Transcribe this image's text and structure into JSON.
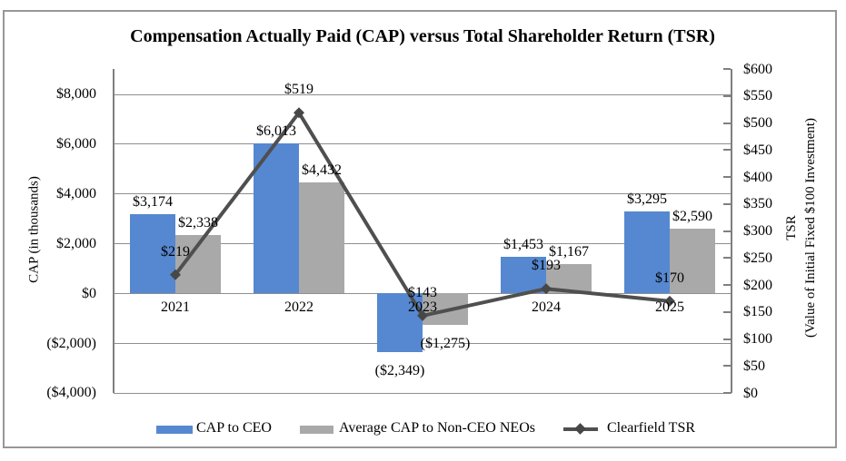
{
  "title": "Compensation Actually Paid (CAP) versus Total Shareholder Return (TSR)",
  "left_axis": {
    "title": "CAP (in thousands)",
    "tick_labels": [
      "$8,000",
      "$6,000",
      "$4,000",
      "$2,000",
      "$0",
      "($2,000)",
      "($4,000)"
    ],
    "tick_values": [
      8000,
      6000,
      4000,
      2000,
      0,
      -2000,
      -4000
    ],
    "ylim": [
      -4000,
      8000
    ]
  },
  "right_axis": {
    "title_line1": "TSR",
    "title_line2": "(Value of Initial Fixed $100 Investment)",
    "tick_labels": [
      "$600",
      "$550",
      "$500",
      "$450",
      "$400",
      "$350",
      "$300",
      "$250",
      "$200",
      "$150",
      "$100",
      "$50",
      "$0"
    ],
    "tick_values": [
      600,
      550,
      500,
      450,
      400,
      350,
      300,
      250,
      200,
      150,
      100,
      50,
      0
    ],
    "ylim": [
      0,
      600
    ]
  },
  "chart_data": {
    "type": "bar",
    "subtype": "bar+line combo, dual axis",
    "categories": [
      "2021",
      "2022",
      "2023",
      "2024",
      "2025"
    ],
    "series": [
      {
        "name": "CAP to CEO",
        "type": "bar",
        "axis": "left",
        "color": "#5588d0",
        "values": [
          3174,
          6013,
          -2349,
          1453,
          3295
        ],
        "labels": [
          "$3,174",
          "$6,013",
          "($2,349)",
          "$1,453",
          "$3,295"
        ]
      },
      {
        "name": "Average CAP to Non-CEO NEOs",
        "type": "bar",
        "axis": "left",
        "color": "#a9a9a9",
        "values": [
          2338,
          4432,
          -1275,
          1167,
          2590
        ],
        "labels": [
          "$2,338",
          "$4,432",
          "($1,275)",
          "$1,167",
          "$2,590"
        ]
      },
      {
        "name": "Clearfield TSR",
        "type": "line",
        "axis": "right",
        "color": "#4f4f4f",
        "marker": "diamond",
        "values": [
          219,
          519,
          143,
          193,
          170
        ],
        "labels": [
          "$219",
          "$519",
          "$143",
          "$193",
          "$170"
        ]
      }
    ],
    "grid": true,
    "legend_position": "bottom",
    "colors": {
      "gridline": "#8f8f8f",
      "axis_line": "#7f7f7f",
      "border": "#979797",
      "text": "#000000"
    }
  }
}
